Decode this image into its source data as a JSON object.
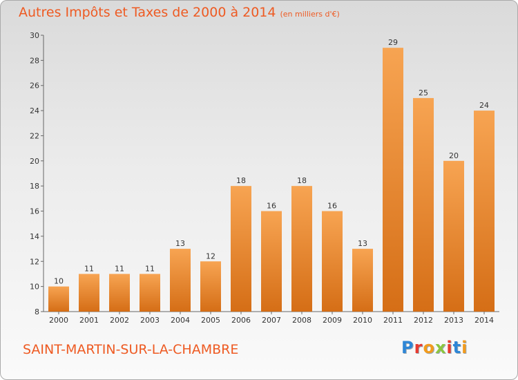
{
  "title": "Autres Impôts et Taxes de 2000 à 2014",
  "subtitle": "(en milliers d'€)",
  "town": "SAINT-MARTIN-SUR-LA-CHAMBRE",
  "brand": {
    "text": "Proxiti",
    "letter_colors": [
      "#2e86d6",
      "#e83a2f",
      "#f29b1d",
      "#8cc63f",
      "#e83a2f",
      "#2e86d6",
      "#f29b1d"
    ]
  },
  "colors": {
    "accent": "#ee5a22",
    "bar_light": "#f7a452",
    "bar_dark": "#d56e16"
  },
  "chart_data": {
    "type": "bar",
    "categories": [
      "2000",
      "2001",
      "2002",
      "2003",
      "2004",
      "2005",
      "2006",
      "2007",
      "2008",
      "2009",
      "2010",
      "2011",
      "2012",
      "2013",
      "2014"
    ],
    "values": [
      10,
      11,
      11,
      11,
      13,
      12,
      18,
      16,
      18,
      16,
      13,
      29,
      25,
      20,
      24
    ],
    "ylim": [
      8,
      30
    ],
    "yticks": [
      8,
      10,
      12,
      14,
      16,
      18,
      20,
      22,
      24,
      26,
      28,
      30
    ],
    "grid": false,
    "data_labels": true
  }
}
